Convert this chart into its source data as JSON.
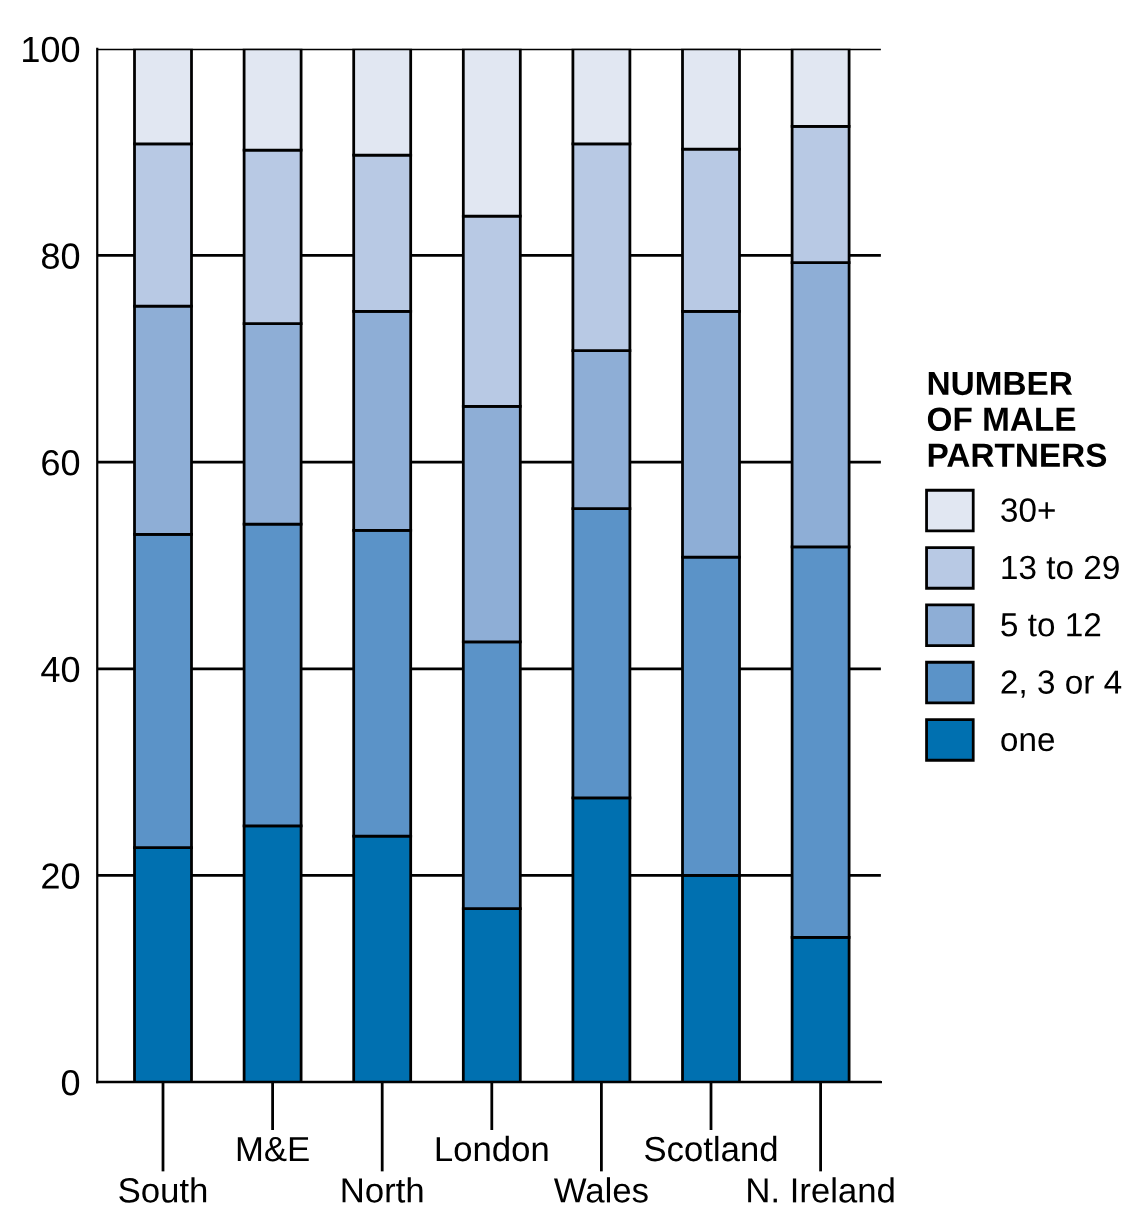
{
  "chart_data": {
    "type": "bar",
    "stacked": true,
    "categories": [
      "South",
      "M&E",
      "North",
      "London",
      "Wales",
      "Scotland",
      "N. Ireland"
    ],
    "series": [
      {
        "name": "one",
        "color": "#0070b0",
        "values": [
          22.7,
          24.8,
          23.8,
          16.8,
          27.5,
          20.0,
          14.0
        ]
      },
      {
        "name": "2, 3 or 4",
        "color": "#5b93c8",
        "values": [
          30.3,
          29.2,
          29.6,
          25.8,
          28.0,
          30.8,
          37.8
        ]
      },
      {
        "name": "5 to 12",
        "color": "#8eaed6",
        "values": [
          22.1,
          19.4,
          21.2,
          22.8,
          15.3,
          23.8,
          27.5
        ]
      },
      {
        "name": "13 to 29",
        "color": "#b8c9e4",
        "values": [
          15.7,
          16.8,
          15.1,
          18.4,
          20.0,
          15.7,
          13.2
        ]
      },
      {
        "name": "30+",
        "color": "#e1e7f2",
        "values": [
          9.2,
          9.8,
          10.3,
          16.2,
          9.2,
          9.7,
          7.5
        ]
      }
    ],
    "ylim": [
      0,
      100
    ],
    "yticks": [
      0,
      20,
      40,
      60,
      80,
      100
    ],
    "grid": "y",
    "legend": "right",
    "legend_title": "NUMBER\nOF MALE\nPARTNERS"
  }
}
